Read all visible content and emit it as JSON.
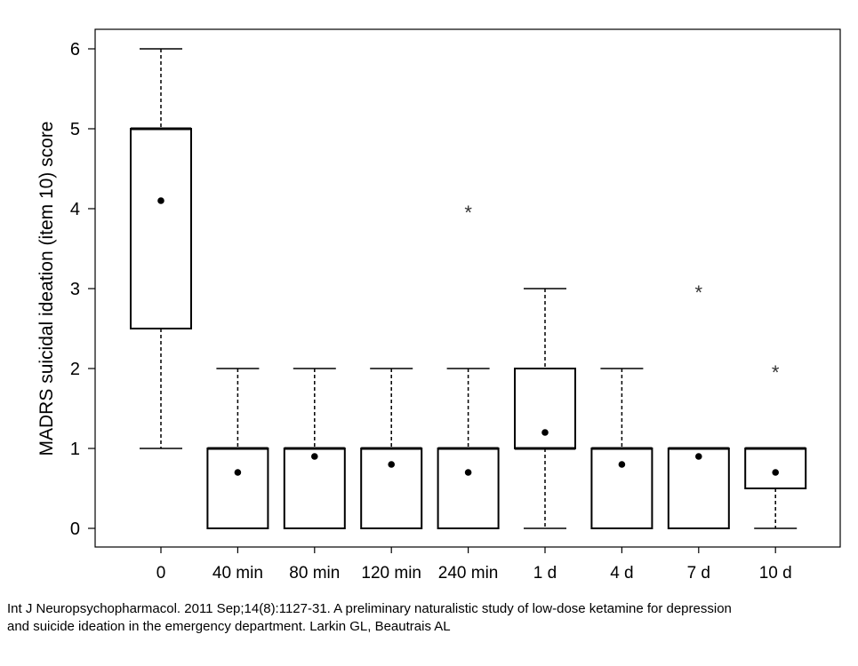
{
  "chart_data": {
    "type": "boxplot",
    "ylabel": "MADRS suicidal ideation (item 10) score",
    "xlabel": "",
    "ylim": [
      -0.25,
      6.25
    ],
    "yticks": [
      0,
      1,
      2,
      3,
      4,
      5,
      6
    ],
    "categories": [
      "0",
      "40 min",
      "80 min",
      "120 min",
      "240 min",
      "1 d",
      "4 d",
      "7 d",
      "10 d"
    ],
    "boxes": [
      {
        "category": "0",
        "whisker_low": 1,
        "q1": 2.5,
        "median": 5,
        "q3": 5,
        "whisker_high": 6,
        "mean": 4.1,
        "outliers": []
      },
      {
        "category": "40 min",
        "whisker_low": 0,
        "q1": 0,
        "median": 1,
        "q3": 1,
        "whisker_high": 2,
        "mean": 0.7,
        "outliers": []
      },
      {
        "category": "80 min",
        "whisker_low": 0,
        "q1": 0,
        "median": 1,
        "q3": 1,
        "whisker_high": 2,
        "mean": 0.9,
        "outliers": []
      },
      {
        "category": "120 min",
        "whisker_low": 0,
        "q1": 0,
        "median": 1,
        "q3": 1,
        "whisker_high": 2,
        "mean": 0.8,
        "outliers": []
      },
      {
        "category": "240 min",
        "whisker_low": 0,
        "q1": 0,
        "median": 1,
        "q3": 1,
        "whisker_high": 2,
        "mean": 0.7,
        "outliers": [
          4
        ]
      },
      {
        "category": "1 d",
        "whisker_low": 0,
        "q1": 1,
        "median": 1,
        "q3": 2,
        "whisker_high": 3,
        "mean": 1.2,
        "outliers": []
      },
      {
        "category": "4 d",
        "whisker_low": 0,
        "q1": 0,
        "median": 1,
        "q3": 1,
        "whisker_high": 2,
        "mean": 0.8,
        "outliers": []
      },
      {
        "category": "7 d",
        "whisker_low": 0,
        "q1": 0,
        "median": 1,
        "q3": 1,
        "whisker_high": 1,
        "mean": 0.9,
        "outliers": [
          3
        ]
      },
      {
        "category": "10 d",
        "whisker_low": 0,
        "q1": 0.5,
        "median": 1,
        "q3": 1,
        "whisker_high": 1,
        "mean": 0.7,
        "outliers": [
          2
        ]
      }
    ],
    "outlier_marker": "*",
    "grid": false,
    "colors": {
      "stroke": "#000000",
      "outlier": "#333333",
      "background": "#ffffff"
    }
  },
  "caption": {
    "line1": "Int J Neuropsychopharmacol. 2011 Sep;14(8):1127-31.  A preliminary naturalistic study of low-dose ketamine for depression",
    "line2": "and suicide ideation in the emergency department. Larkin GL, Beautrais AL"
  }
}
